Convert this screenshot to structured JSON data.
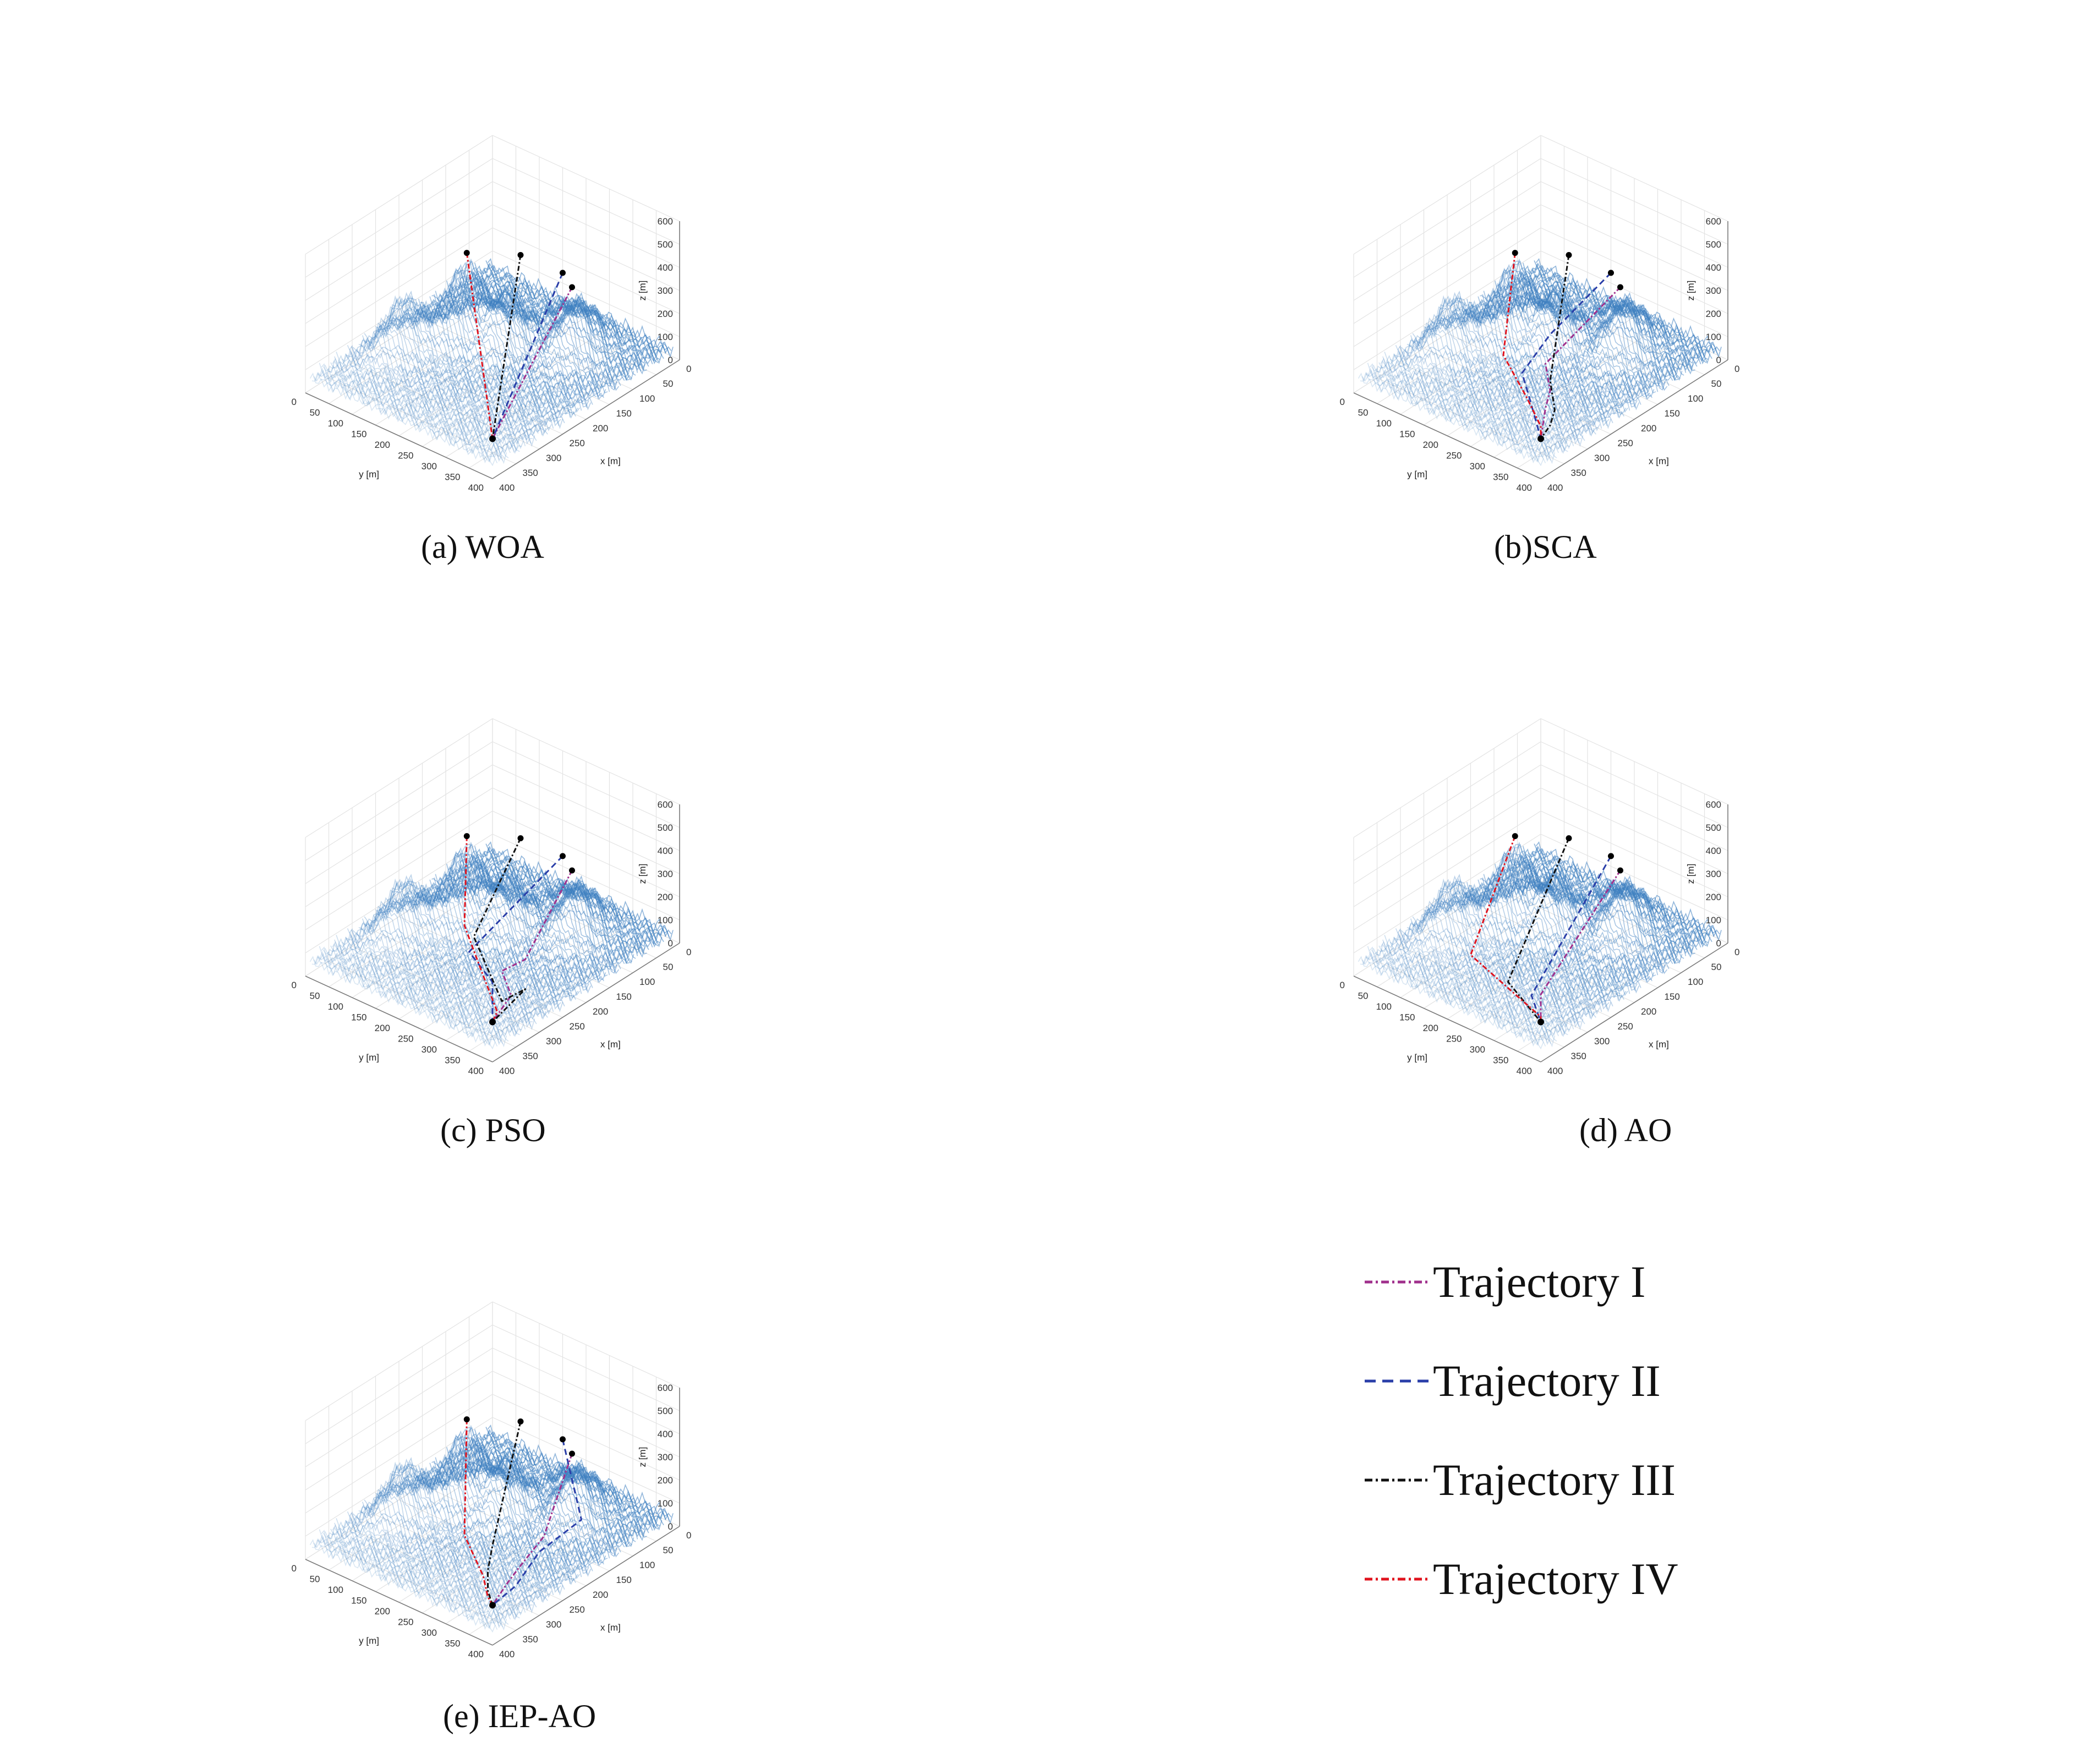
{
  "chart_data": {
    "type": "3d-line",
    "terrain_color": "#3d7fc0",
    "axes": {
      "xlabel": "x [m]",
      "ylabel": "y [m]",
      "zlabel": "z [m]",
      "x_ticks": [
        "0",
        "50",
        "100",
        "150",
        "200",
        "250",
        "300",
        "350",
        "400"
      ],
      "y_ticks": [
        "0",
        "50",
        "100",
        "150",
        "200",
        "250",
        "300",
        "350",
        "400"
      ],
      "z_ticks": [
        "0",
        "100",
        "200",
        "300",
        "400",
        "500",
        "600"
      ],
      "xlim": [
        0,
        400
      ],
      "ylim": [
        0,
        400
      ],
      "zlim": [
        0,
        600
      ]
    },
    "legend": [
      {
        "name": "Trajectory I",
        "color": "#a0308c",
        "dash": "dash-dot"
      },
      {
        "name": "Trajectory II",
        "color": "#2a3ea8",
        "dash": "dashed"
      },
      {
        "name": "Trajectory III",
        "color": "#111111",
        "dash": "dash-dot"
      },
      {
        "name": "Trajectory IV",
        "color": "#e0141e",
        "dash": "dash-dot"
      }
    ],
    "panels": [
      {
        "caption": "(a) WOA",
        "goal": [
          340,
          340,
          40
        ],
        "starts": [
          [
            90,
            260,
            300
          ],
          [
            120,
            270,
            410
          ],
          [
            150,
            210,
            470
          ],
          [
            185,
            130,
            450
          ]
        ],
        "paths": [
          [
            [
              90,
              260,
              300
            ],
            [
              340,
              340,
              40
            ]
          ],
          [
            [
              120,
              270,
              410
            ],
            [
              340,
              340,
              40
            ]
          ],
          [
            [
              150,
              210,
              470
            ],
            [
              340,
              340,
              40
            ]
          ],
          [
            [
              185,
              130,
              450
            ],
            [
              340,
              340,
              40
            ]
          ]
        ]
      },
      {
        "caption": "(b)SCA",
        "goal": [
          340,
          340,
          40
        ],
        "starts": [
          [
            90,
            260,
            300
          ],
          [
            120,
            270,
            410
          ],
          [
            150,
            210,
            470
          ],
          [
            185,
            130,
            450
          ]
        ],
        "paths": [
          [
            [
              90,
              260,
              300
            ],
            [
              230,
              240,
              130
            ],
            [
              260,
              280,
              90
            ],
            [
              290,
              300,
              70
            ],
            [
              340,
              340,
              40
            ]
          ],
          [
            [
              120,
              270,
              410
            ],
            [
              200,
              220,
              200
            ],
            [
              260,
              220,
              110
            ],
            [
              300,
              280,
              80
            ],
            [
              340,
              340,
              40
            ]
          ],
          [
            [
              150,
              210,
              470
            ],
            [
              250,
              270,
              110
            ],
            [
              280,
              310,
              60
            ],
            [
              310,
              330,
              50
            ],
            [
              340,
              340,
              40
            ]
          ],
          [
            [
              185,
              130,
              450
            ],
            [
              260,
              180,
              150
            ],
            [
              290,
              260,
              80
            ],
            [
              320,
              320,
              50
            ],
            [
              340,
              340,
              40
            ]
          ]
        ]
      },
      {
        "caption": "(c) PSO",
        "goal": [
          340,
          340,
          40
        ],
        "starts": [
          [
            90,
            260,
            300
          ],
          [
            120,
            270,
            410
          ],
          [
            150,
            210,
            470
          ],
          [
            185,
            130,
            450
          ]
        ],
        "paths": [
          [
            [
              90,
              260,
              300
            ],
            [
              220,
              290,
              110
            ],
            [
              250,
              270,
              80
            ],
            [
              280,
              320,
              60
            ],
            [
              340,
              340,
              40
            ]
          ],
          [
            [
              120,
              270,
              410
            ],
            [
              210,
              220,
              190
            ],
            [
              260,
              210,
              120
            ],
            [
              280,
              280,
              80
            ],
            [
              340,
              340,
              40
            ]
          ],
          [
            [
              150,
              210,
              470
            ],
            [
              240,
              200,
              150
            ],
            [
              300,
              320,
              60
            ],
            [
              260,
              330,
              70
            ],
            [
              340,
              340,
              40
            ]
          ],
          [
            [
              185,
              130,
              450
            ],
            [
              240,
              180,
              180
            ],
            [
              280,
              260,
              90
            ],
            [
              320,
              330,
              50
            ],
            [
              340,
              340,
              40
            ]
          ]
        ]
      },
      {
        "caption": "(d) AO",
        "goal": [
          340,
          340,
          40
        ],
        "starts": [
          [
            90,
            260,
            300
          ],
          [
            120,
            270,
            410
          ],
          [
            150,
            210,
            470
          ],
          [
            185,
            130,
            450
          ]
        ],
        "paths": [
          [
            [
              90,
              260,
              300
            ],
            [
              300,
              300,
              70
            ],
            [
              340,
              340,
              40
            ]
          ],
          [
            [
              120,
              270,
              410
            ],
            [
              310,
              290,
              70
            ],
            [
              340,
              340,
              40
            ]
          ],
          [
            [
              150,
              210,
              470
            ],
            [
              300,
              230,
              60
            ],
            [
              340,
              340,
              40
            ]
          ],
          [
            [
              185,
              130,
              450
            ],
            [
              290,
              140,
              80
            ],
            [
              330,
              330,
              40
            ],
            [
              340,
              340,
              40
            ]
          ]
        ]
      },
      {
        "caption": "(e) IEP-AO",
        "goal": [
          340,
          340,
          40
        ],
        "starts": [
          [
            90,
            260,
            300
          ],
          [
            120,
            270,
            410
          ],
          [
            150,
            210,
            470
          ],
          [
            185,
            130,
            450
          ]
        ],
        "paths": [
          [
            [
              90,
              260,
              300
            ],
            [
              200,
              310,
              130
            ],
            [
              260,
              320,
              90
            ],
            [
              300,
              330,
              70
            ],
            [
              340,
              340,
              40
            ]
          ],
          [
            [
              120,
              270,
              410
            ],
            [
              170,
              360,
              210
            ],
            [
              230,
              330,
              120
            ],
            [
              290,
              340,
              60
            ],
            [
              340,
              340,
              40
            ]
          ],
          [
            [
              150,
              210,
              470
            ],
            [
              250,
              250,
              100
            ],
            [
              290,
              280,
              70
            ],
            [
              320,
              310,
              50
            ],
            [
              340,
              340,
              40
            ]
          ],
          [
            [
              185,
              130,
              450
            ],
            [
              260,
              200,
              110
            ],
            [
              300,
              280,
              60
            ],
            [
              330,
              320,
              45
            ],
            [
              340,
              340,
              40
            ]
          ]
        ]
      }
    ]
  }
}
